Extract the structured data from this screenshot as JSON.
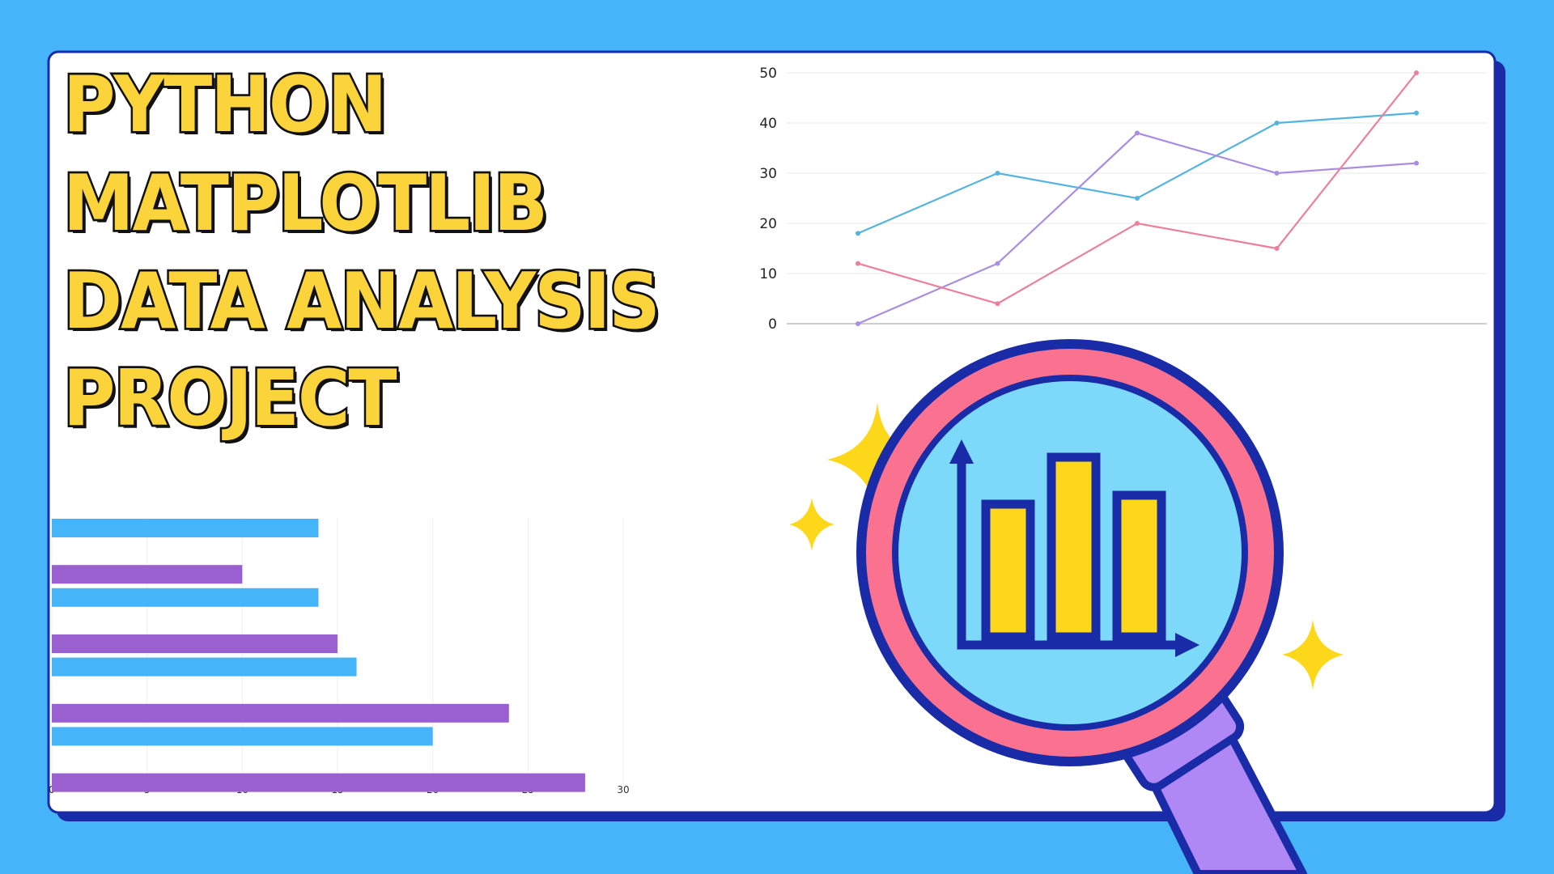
{
  "title_lines": [
    "PYTHON",
    "MATPLOTLIB",
    "DATA ANALYSIS",
    "PROJECT"
  ],
  "colors": {
    "background": "#45b4f8",
    "card": "#ffffff",
    "card_border": "#1a2ba8",
    "title_fill": "#fbd43c",
    "title_outline": "#111111",
    "magnifier_ring": "#fb7290",
    "magnifier_outline": "#1a2ba8",
    "magnifier_lens": "#7cd9fa",
    "magnifier_handle": "#b088f6",
    "icon_bars": "#fdd71a",
    "sparkle": "#fdd71a"
  },
  "icons": [
    "magnifying-glass-icon",
    "bar-chart-icon",
    "sparkle-icon"
  ],
  "chart_data": [
    {
      "type": "line",
      "x": [
        1,
        2,
        3,
        4,
        5
      ],
      "xlabel": "",
      "ylabel": "",
      "ylim": [
        0,
        50
      ],
      "yticks": [
        0,
        10,
        20,
        30,
        40,
        50
      ],
      "grid": true,
      "series": [
        {
          "color": "#55b4de",
          "values": [
            18,
            30,
            25,
            40,
            42
          ]
        },
        {
          "color": "#a98de0",
          "values": [
            0,
            12,
            38,
            30,
            32
          ]
        },
        {
          "color": "#ec7f9a",
          "values": [
            12,
            4,
            20,
            15,
            50
          ]
        }
      ]
    },
    {
      "type": "bar",
      "orientation": "horizontal",
      "xlim": [
        0,
        30
      ],
      "xticks": [
        0,
        5,
        10,
        15,
        20,
        25,
        30
      ],
      "grid": true,
      "bars": [
        {
          "color": "#45b4f8",
          "value": 14
        },
        {
          "color": "#9a5fd0",
          "value": 10
        },
        {
          "color": "#45b4f8",
          "value": 14
        },
        {
          "color": "#9a5fd0",
          "value": 15
        },
        {
          "color": "#45b4f8",
          "value": 16
        },
        {
          "color": "#9a5fd0",
          "value": 24
        },
        {
          "color": "#45b4f8",
          "value": 20
        },
        {
          "color": "#9a5fd0",
          "value": 28
        }
      ]
    }
  ]
}
